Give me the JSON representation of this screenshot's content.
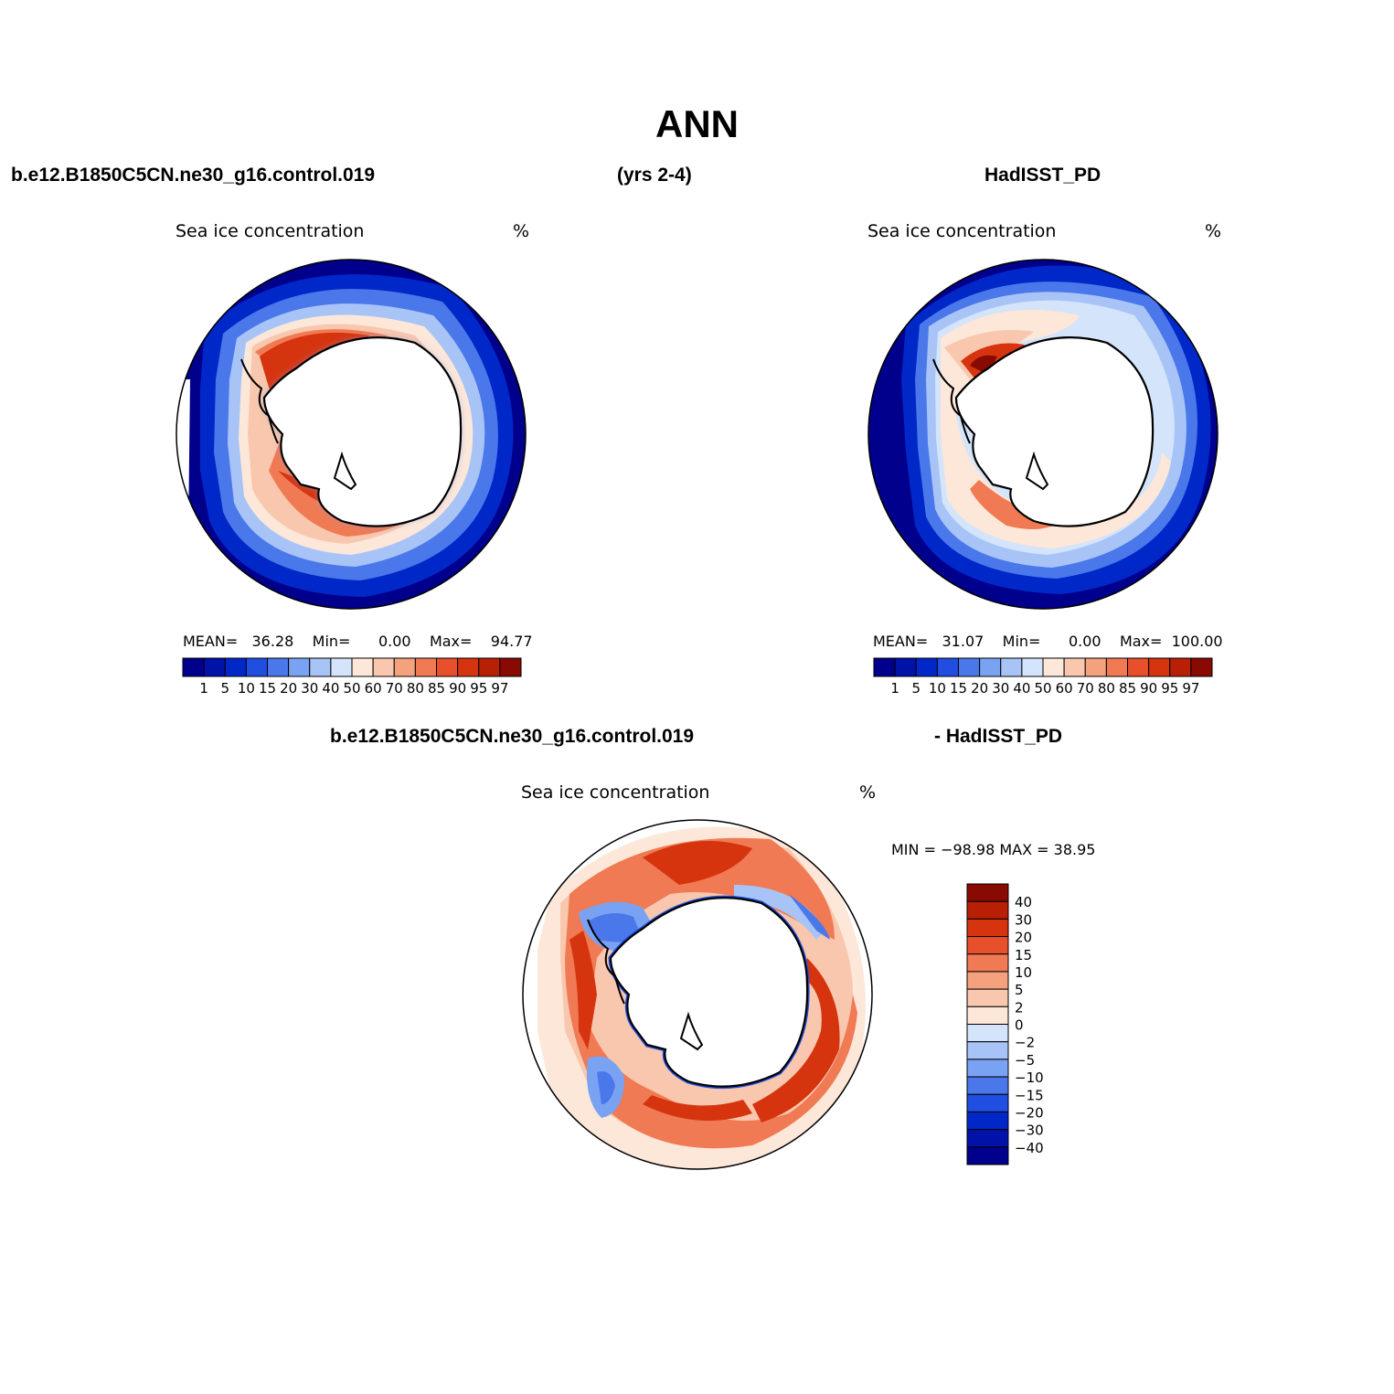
{
  "title": "ANN",
  "header": {
    "left": "b.e12.B1850C5CN.ne30_g16.control.019",
    "middle": "(yrs 2-4)",
    "right": "HadISST_PD"
  },
  "panels": {
    "model": {
      "label": "Sea ice concentration",
      "units": "%",
      "stats": {
        "mean_label": "MEAN=",
        "mean": "36.28",
        "min_label": "Min=",
        "min": "0.00",
        "max_label": "Max=",
        "max": "94.77"
      }
    },
    "obs": {
      "label": "Sea ice concentration",
      "units": "%",
      "stats": {
        "mean_label": "MEAN=",
        "mean": "31.07",
        "min_label": "Min=",
        "min": "0.00",
        "max_label": "Max=",
        "max": "100.00"
      }
    },
    "diff": {
      "title_left": "b.e12.B1850C5CN.ne30_g16.control.019",
      "title_right": "- HadISST_PD",
      "label": "Sea ice concentration",
      "units": "%",
      "minmax": "MIN = −98.98 MAX =   38.95"
    }
  },
  "colorbar_concentration": {
    "labels": [
      "1",
      "5",
      "10",
      "15",
      "20",
      "30",
      "40",
      "50",
      "60",
      "70",
      "80",
      "85",
      "90",
      "95",
      "97"
    ],
    "colors": [
      "#00008c",
      "#0012a8",
      "#0028c8",
      "#1f4ee0",
      "#4a78ea",
      "#7aa2f2",
      "#a8c4f7",
      "#d3e4fb",
      "#fde7d9",
      "#f8c7ad",
      "#f4a27e",
      "#f07a53",
      "#e8502c",
      "#d6340f",
      "#b82006",
      "#880a02"
    ]
  },
  "colorbar_difference": {
    "labels": [
      "40",
      "30",
      "20",
      "15",
      "10",
      "5",
      "2",
      "0",
      "−2",
      "−5",
      "−10",
      "−15",
      "−20",
      "−30",
      "−40"
    ],
    "colors": [
      "#880a02",
      "#b82006",
      "#d6340f",
      "#e8502c",
      "#f07a53",
      "#f4a27e",
      "#f8c7ad",
      "#fde7d9",
      "#d3e4fb",
      "#a8c4f7",
      "#7aa2f2",
      "#4a78ea",
      "#1f4ee0",
      "#0028c8",
      "#0012a8",
      "#00008c"
    ]
  }
}
